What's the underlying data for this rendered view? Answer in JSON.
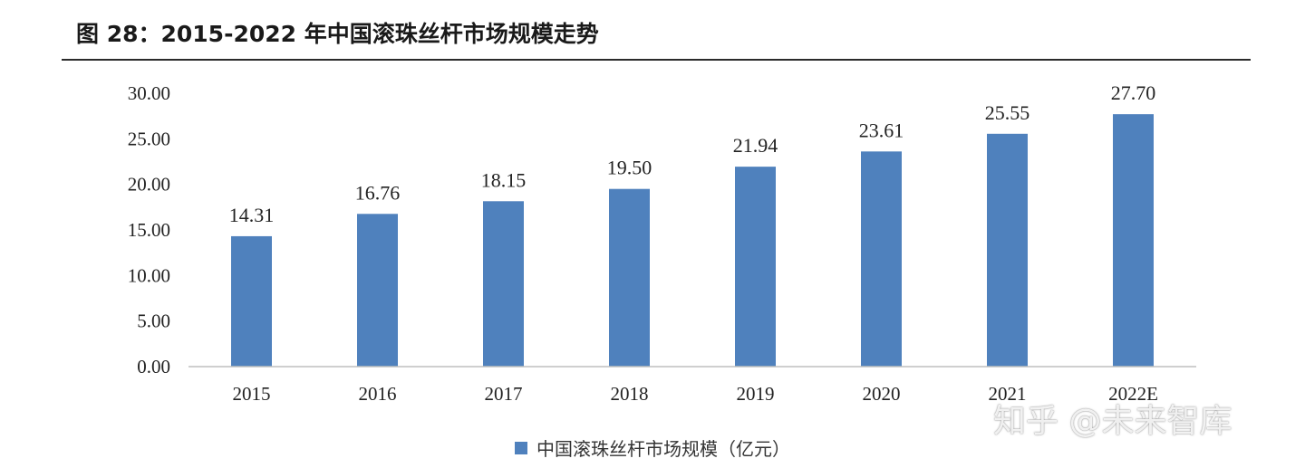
{
  "figure": {
    "title": "图 28：2015-2022 年中国滚珠丝杆市场规模走势"
  },
  "chart_data": {
    "type": "bar",
    "categories": [
      "2015",
      "2016",
      "2017",
      "2018",
      "2019",
      "2020",
      "2021",
      "2022E"
    ],
    "series": [
      {
        "name": "中国滚珠丝杆市场规模（亿元）",
        "values": [
          14.31,
          16.76,
          18.15,
          19.5,
          21.94,
          23.61,
          25.55,
          27.7
        ],
        "data_labels": [
          "14.31",
          "16.76",
          "18.15",
          "19.50",
          "21.94",
          "23.61",
          "25.55",
          "27.70"
        ]
      }
    ],
    "ylim": [
      0,
      30
    ],
    "yticks": [
      "0.00",
      "5.00",
      "10.00",
      "15.00",
      "20.00",
      "25.00",
      "30.00"
    ],
    "ytick_values": [
      0,
      5,
      10,
      15,
      20,
      25,
      30
    ],
    "grid": false,
    "legend": "bottom-center",
    "bar_color": "#4f81bd"
  },
  "watermark": "知乎 @未来智库"
}
